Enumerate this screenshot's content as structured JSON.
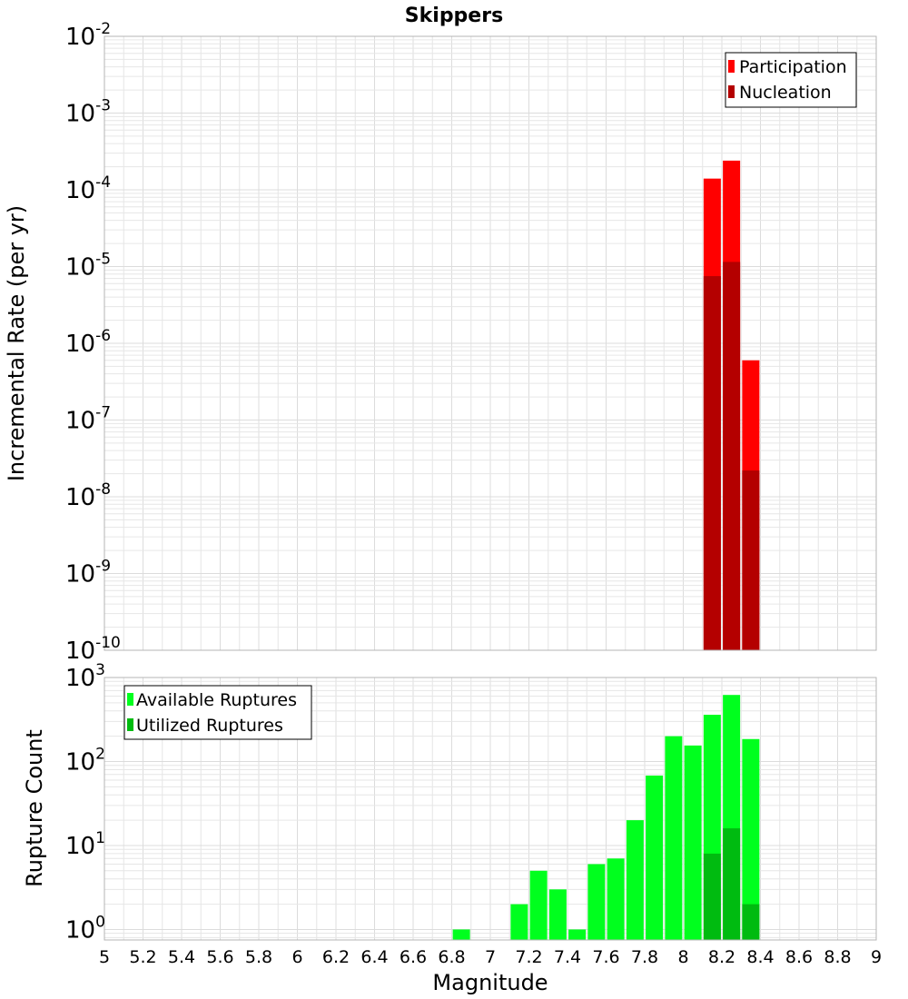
{
  "chart_data": [
    {
      "type": "bar",
      "title": "Skippers",
      "xlabel": "",
      "ylabel": "Incremental Rate (per yr)",
      "yscale": "log",
      "ylim": [
        1e-10,
        0.01
      ],
      "xlim": [
        5,
        9
      ],
      "grid": true,
      "legend_position": "top-right",
      "x": [
        8.15,
        8.25,
        8.35
      ],
      "series": [
        {
          "name": "Participation",
          "color": "#ff0000",
          "values": [
            0.00014,
            0.00024,
            6e-07
          ]
        },
        {
          "name": "Nucleation",
          "color": "#b40000",
          "values": [
            7.5e-06,
            1.15e-05,
            2.2e-08
          ]
        }
      ],
      "y_tick_labels": [
        {
          "base": "10",
          "exp": "-10"
        },
        {
          "base": "10",
          "exp": "-9"
        },
        {
          "base": "10",
          "exp": "-8"
        },
        {
          "base": "10",
          "exp": "-7"
        },
        {
          "base": "10",
          "exp": "-6"
        },
        {
          "base": "10",
          "exp": "-5"
        },
        {
          "base": "10",
          "exp": "-4"
        },
        {
          "base": "10",
          "exp": "-3"
        },
        {
          "base": "10",
          "exp": "-2"
        }
      ]
    },
    {
      "type": "bar",
      "title": "",
      "xlabel": "Magnitude",
      "ylabel": "Rupture Count",
      "yscale": "log",
      "ylim": [
        0.75,
        1000
      ],
      "xlim": [
        5,
        9
      ],
      "grid": true,
      "legend_position": "top-left",
      "x": [
        6.85,
        7.15,
        7.25,
        7.35,
        7.45,
        7.55,
        7.65,
        7.75,
        7.85,
        7.95,
        8.05,
        8.15,
        8.25,
        8.35
      ],
      "series": [
        {
          "name": "Available Ruptures",
          "color": "#00ff1e",
          "values": [
            1,
            2,
            5,
            3,
            1,
            6,
            7,
            20,
            68,
            200,
            155,
            360,
            620,
            185
          ]
        },
        {
          "name": "Utilized Ruptures",
          "color": "#00bb10",
          "values": [
            0,
            0,
            0,
            0,
            0,
            0,
            0,
            0,
            0,
            0,
            0,
            8,
            16,
            2
          ]
        }
      ],
      "y_tick_labels": [
        {
          "base": "10",
          "exp": "0"
        },
        {
          "base": "10",
          "exp": "1"
        },
        {
          "base": "10",
          "exp": "2"
        },
        {
          "base": "10",
          "exp": "3"
        }
      ],
      "x_tick_labels": [
        "5",
        "5.2",
        "5.4",
        "5.6",
        "5.8",
        "6",
        "6.2",
        "6.4",
        "6.6",
        "6.8",
        "7",
        "7.2",
        "7.4",
        "7.6",
        "7.8",
        "8",
        "8.2",
        "8.4",
        "8.6",
        "8.8",
        "9"
      ]
    }
  ]
}
